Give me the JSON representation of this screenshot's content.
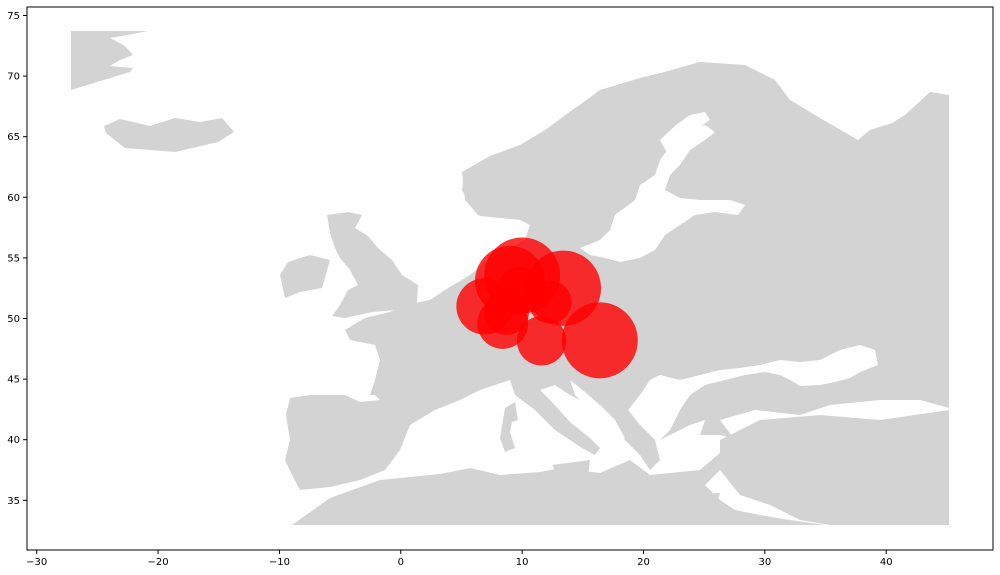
{
  "chart_data": {
    "type": "scatter",
    "title": "",
    "xlabel": "",
    "ylabel": "",
    "xlim": [
      -30.8,
      48.8
    ],
    "ylim": [
      30.9,
      75.7
    ],
    "xticks": [
      -30,
      -20,
      -10,
      0,
      10,
      20,
      30,
      40
    ],
    "yticks": [
      35,
      40,
      45,
      50,
      55,
      60,
      65,
      70,
      75
    ],
    "grid": false,
    "basemap": {
      "fill": "#d3d3d3",
      "background": "#ffffff"
    },
    "series": [
      {
        "marker_color": "#ff0000",
        "points": [
          {
            "lon": 10.0,
            "lat": 53.55,
            "size": 1.0
          },
          {
            "lon": 13.4,
            "lat": 52.5,
            "size": 0.98
          },
          {
            "lon": 16.4,
            "lat": 48.2,
            "size": 1.0
          },
          {
            "lon": 9.0,
            "lat": 53.1,
            "size": 0.85
          },
          {
            "lon": 6.9,
            "lat": 51.0,
            "size": 0.55
          },
          {
            "lon": 8.4,
            "lat": 49.6,
            "size": 0.45
          },
          {
            "lon": 11.6,
            "lat": 48.15,
            "size": 0.42
          },
          {
            "lon": 12.3,
            "lat": 51.35,
            "size": 0.32
          },
          {
            "lon": 8.7,
            "lat": 50.5,
            "size": 0.35
          },
          {
            "lon": 9.8,
            "lat": 52.4,
            "size": 0.35
          }
        ]
      }
    ]
  }
}
